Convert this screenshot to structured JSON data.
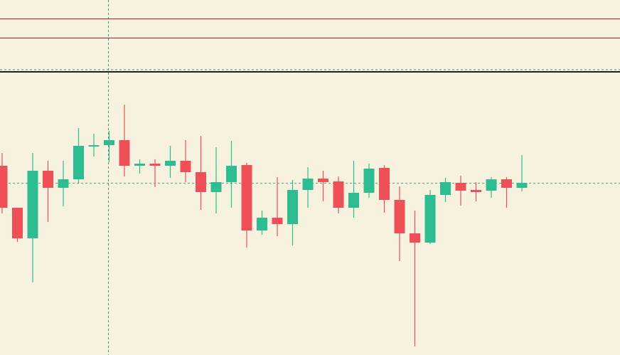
{
  "chart_data": {
    "type": "candlestick",
    "ylim": [
      0,
      499
    ],
    "up_color": "#2ebd91",
    "down_color": "#ef5058",
    "level_color": "#b0242c",
    "levels": [
      473,
      446
    ],
    "open": [
      266,
      207,
      164,
      259,
      235,
      247,
      294,
      295,
      302,
      266,
      269,
      266,
      273,
      257,
      229,
      243,
      267,
      175,
      193,
      184,
      232,
      248,
      244,
      207,
      228,
      263,
      218,
      171,
      158,
      225,
      242,
      232,
      231,
      247,
      235
    ],
    "high": [
      284,
      207,
      284,
      273,
      273,
      319,
      311,
      315,
      352,
      275,
      275,
      294,
      302,
      308,
      292,
      301,
      270,
      203,
      250,
      246,
      264,
      259,
      251,
      273,
      269,
      267,
      237,
      203,
      232,
      249,
      252,
      243,
      250,
      250,
      281
    ],
    "low": [
      199,
      159,
      102,
      187,
      209,
      241,
      279,
      271,
      251,
      255,
      236,
      249,
      243,
      204,
      199,
      207,
      151,
      169,
      167,
      154,
      207,
      216,
      199,
      193,
      221,
      200,
      132,
      12,
      156,
      215,
      210,
      216,
      221,
      207,
      230
    ],
    "close": [
      207,
      164,
      259,
      235,
      247,
      294,
      295,
      302,
      266,
      269,
      266,
      273,
      257,
      229,
      243,
      266,
      175,
      193,
      184,
      232,
      248,
      243,
      207,
      228,
      262,
      218,
      171,
      158,
      225,
      243,
      231,
      229,
      247,
      235,
      242
    ]
  }
}
